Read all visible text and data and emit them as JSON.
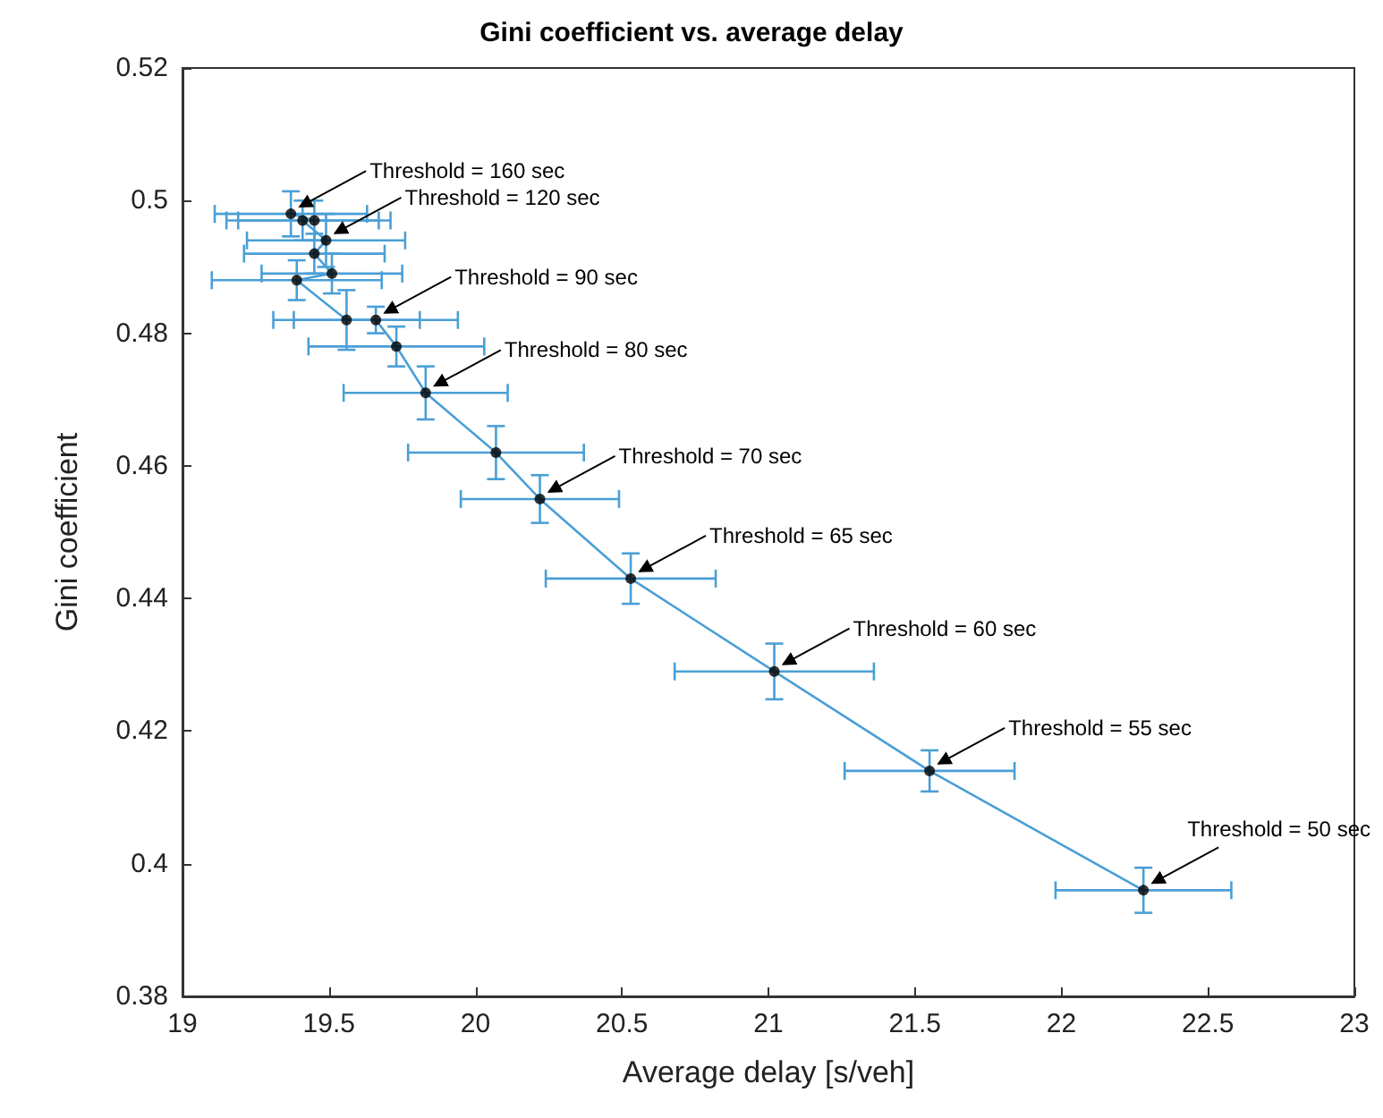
{
  "chart_data": {
    "type": "line",
    "title": "Gini coefficient vs. average delay",
    "xlabel": "Average delay [s/veh]",
    "ylabel": "Gini coefficient",
    "x": [
      22.28,
      21.55,
      21.02,
      20.53,
      20.22,
      20.07,
      19.83,
      19.73,
      19.66,
      19.56,
      19.39,
      19.51,
      19.45,
      19.49,
      19.41,
      19.45,
      19.37
    ],
    "series": [
      {
        "color": "#4a9fd6",
        "marker": "none",
        "values": [
          0.396,
          0.414,
          0.429,
          0.443,
          0.455,
          0.462,
          0.471,
          0.478,
          0.482,
          0.482,
          0.488,
          0.489,
          0.492,
          0.494,
          0.497,
          0.497,
          0.498
        ],
        "errors": [
          0.0034,
          0.0031,
          0.0042,
          0.0038,
          0.0036,
          0.004,
          0.004,
          0.003,
          0.002,
          0.0045,
          0.003,
          0.003,
          0.003,
          0.004,
          0.003,
          0.003,
          0.0034
        ],
        "xerrors": [
          0.3,
          0.29,
          0.34,
          0.29,
          0.27,
          0.3,
          0.28,
          0.3,
          0.28,
          0.25,
          0.29,
          0.24,
          0.24,
          0.27,
          0.26,
          0.26,
          0.26
        ]
      },
      {
        "type": "scatter",
        "color": "#000000",
        "marker": "circle",
        "values": [
          0.396,
          0.414,
          0.429,
          0.443,
          0.455,
          0.462,
          0.471,
          0.478,
          0.482,
          0.482,
          0.488,
          0.489,
          0.492,
          0.494,
          0.497,
          0.497,
          0.498
        ]
      }
    ],
    "annotations": [
      {
        "text": "Threshold = 50 sec",
        "x": 22.28,
        "y": 0.396
      },
      {
        "text": "Threshold = 55 sec",
        "x": 21.55,
        "y": 0.414
      },
      {
        "text": "Threshold = 60 sec",
        "x": 21.02,
        "y": 0.429
      },
      {
        "text": "Threshold = 65 sec",
        "x": 20.53,
        "y": 0.443
      },
      {
        "text": "Threshold = 70 sec",
        "x": 20.22,
        "y": 0.455
      },
      {
        "text": "Threshold = 80 sec",
        "x": 19.83,
        "y": 0.471
      },
      {
        "text": "Threshold = 90 sec",
        "x": 19.66,
        "y": 0.482
      },
      {
        "text": "Threshold = 120 sec",
        "x": 19.49,
        "y": 0.494
      },
      {
        "text": "Threshold = 160 sec",
        "x": 19.37,
        "y": 0.498
      }
    ],
    "xlim": [
      19,
      23
    ],
    "xticks": [
      19,
      19.5,
      20,
      20.5,
      21,
      21.5,
      22,
      22.5,
      23
    ],
    "ylim": [
      0.38,
      0.52
    ],
    "yticks": [
      0.38,
      0.4,
      0.42,
      0.44,
      0.46,
      0.48,
      0.5,
      0.52
    ],
    "grid": false
  }
}
